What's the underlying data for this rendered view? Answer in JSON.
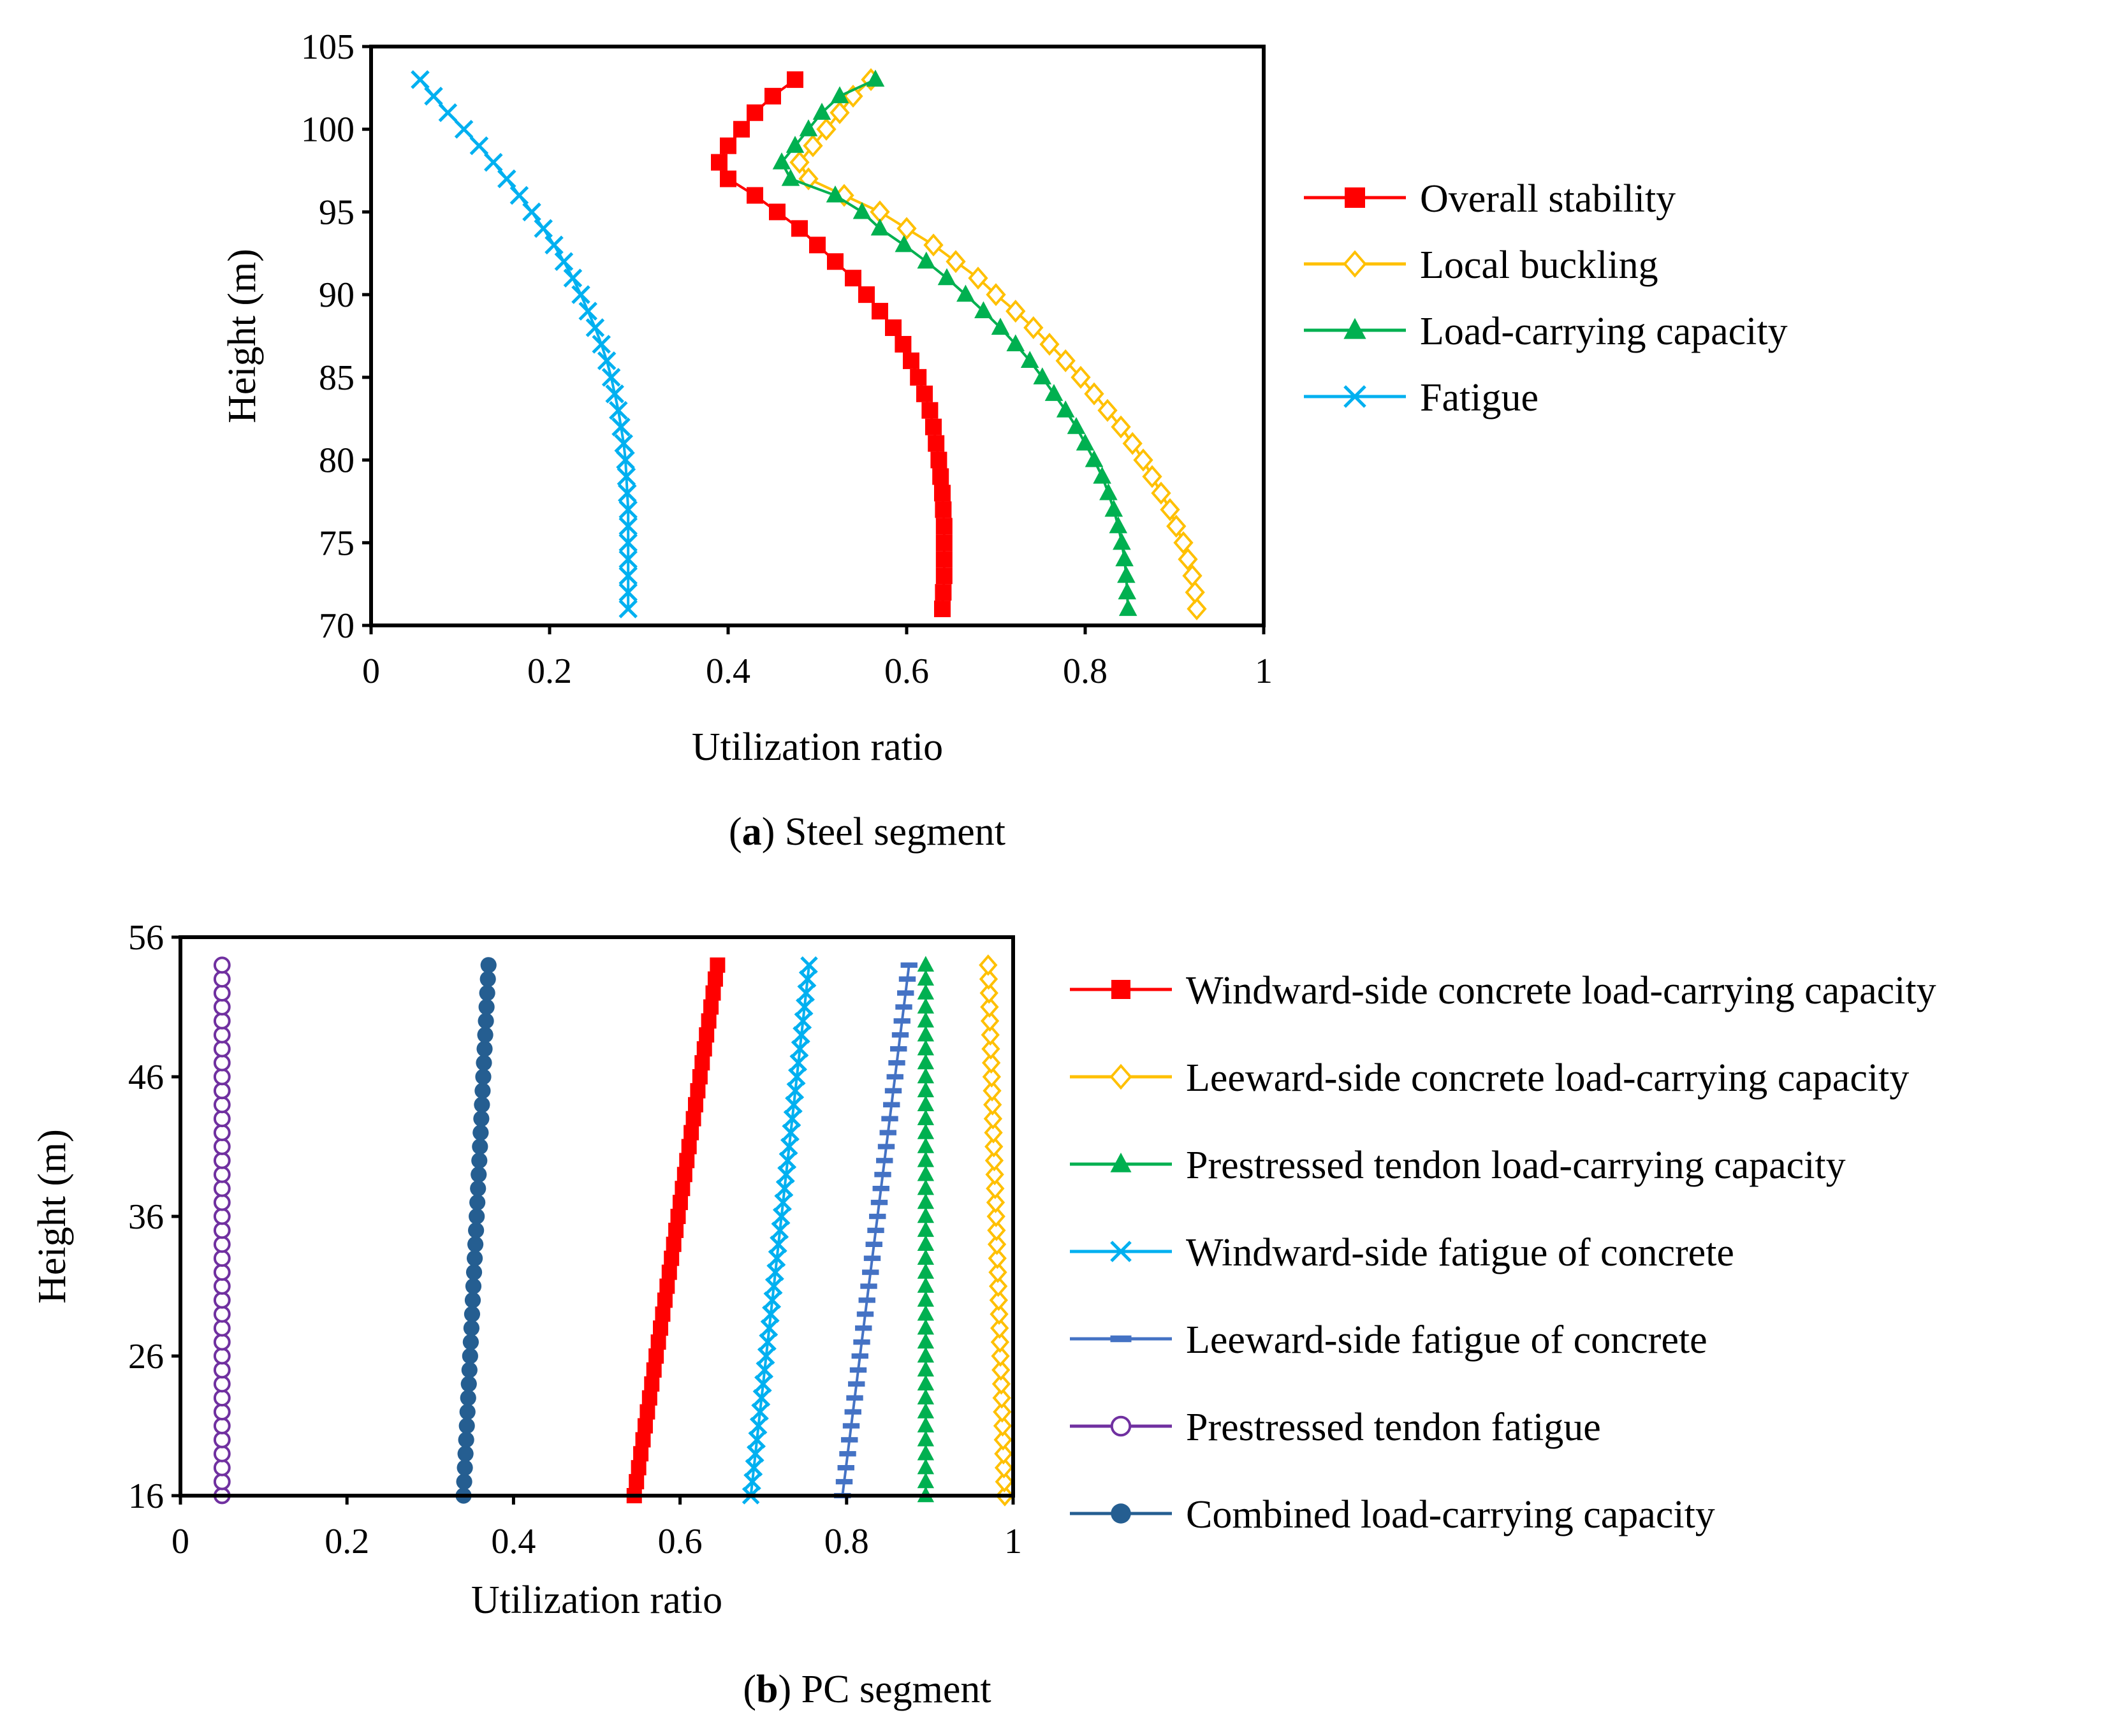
{
  "colors": {
    "red": "#FF0000",
    "orange": "#FFC000",
    "green": "#00B050",
    "lightblue": "#00B0F0",
    "blue": "#4472C4",
    "purple": "#7030A0",
    "darkblue": "#255E91"
  },
  "chart_data": [
    {
      "type": "line",
      "title": "",
      "caption": {
        "bold": "a",
        "text": ") Steel segment"
      },
      "xlabel": "Utilization ratio",
      "ylabel": "Height (m)",
      "xlim": [
        0,
        1
      ],
      "ylim": [
        70,
        105
      ],
      "xticks": [
        "0",
        "0.2",
        "0.4",
        "0.6",
        "0.8",
        "1"
      ],
      "yticks": [
        "70",
        "75",
        "80",
        "85",
        "90",
        "95",
        "100",
        "105"
      ],
      "legend_position": "right",
      "series": [
        {
          "name": "Overall stability",
          "color": "#FF0000",
          "marker": "square",
          "points": [
            [
              0.64,
              71
            ],
            [
              0.641,
              72
            ],
            [
              0.642,
              73
            ],
            [
              0.642,
              74
            ],
            [
              0.642,
              75
            ],
            [
              0.642,
              76
            ],
            [
              0.641,
              77
            ],
            [
              0.64,
              78
            ],
            [
              0.638,
              79
            ],
            [
              0.636,
              80
            ],
            [
              0.633,
              81
            ],
            [
              0.63,
              82
            ],
            [
              0.626,
              83
            ],
            [
              0.62,
              84
            ],
            [
              0.613,
              85
            ],
            [
              0.605,
              86
            ],
            [
              0.596,
              87
            ],
            [
              0.585,
              88
            ],
            [
              0.57,
              89
            ],
            [
              0.555,
              90
            ],
            [
              0.54,
              91
            ],
            [
              0.52,
              92
            ],
            [
              0.5,
              93
            ],
            [
              0.48,
              94
            ],
            [
              0.455,
              95
            ],
            [
              0.43,
              96
            ],
            [
              0.4,
              97
            ],
            [
              0.39,
              98
            ],
            [
              0.4,
              99
            ],
            [
              0.415,
              100
            ],
            [
              0.43,
              101
            ],
            [
              0.45,
              102
            ],
            [
              0.475,
              103
            ]
          ]
        },
        {
          "name": "Local buckling",
          "color": "#FFC000",
          "marker": "diamond",
          "points": [
            [
              0.925,
              71
            ],
            [
              0.923,
              72
            ],
            [
              0.92,
              73
            ],
            [
              0.915,
              74
            ],
            [
              0.91,
              75
            ],
            [
              0.902,
              76
            ],
            [
              0.895,
              77
            ],
            [
              0.885,
              78
            ],
            [
              0.875,
              79
            ],
            [
              0.865,
              80
            ],
            [
              0.853,
              81
            ],
            [
              0.84,
              82
            ],
            [
              0.825,
              83
            ],
            [
              0.81,
              84
            ],
            [
              0.795,
              85
            ],
            [
              0.778,
              86
            ],
            [
              0.76,
              87
            ],
            [
              0.742,
              88
            ],
            [
              0.722,
              89
            ],
            [
              0.7,
              90
            ],
            [
              0.68,
              91
            ],
            [
              0.655,
              92
            ],
            [
              0.63,
              93
            ],
            [
              0.6,
              94
            ],
            [
              0.57,
              95
            ],
            [
              0.53,
              96
            ],
            [
              0.49,
              97
            ],
            [
              0.48,
              98
            ],
            [
              0.495,
              99
            ],
            [
              0.51,
              100
            ],
            [
              0.525,
              101
            ],
            [
              0.54,
              102
            ],
            [
              0.56,
              103
            ]
          ]
        },
        {
          "name": "Load-carrying capacity",
          "color": "#00B050",
          "marker": "triangle",
          "points": [
            [
              0.848,
              71
            ],
            [
              0.847,
              72
            ],
            [
              0.846,
              73
            ],
            [
              0.844,
              74
            ],
            [
              0.841,
              75
            ],
            [
              0.837,
              76
            ],
            [
              0.832,
              77
            ],
            [
              0.826,
              78
            ],
            [
              0.819,
              79
            ],
            [
              0.81,
              80
            ],
            [
              0.8,
              81
            ],
            [
              0.79,
              82
            ],
            [
              0.778,
              83
            ],
            [
              0.765,
              84
            ],
            [
              0.752,
              85
            ],
            [
              0.738,
              86
            ],
            [
              0.722,
              87
            ],
            [
              0.705,
              88
            ],
            [
              0.686,
              89
            ],
            [
              0.666,
              90
            ],
            [
              0.645,
              91
            ],
            [
              0.622,
              92
            ],
            [
              0.597,
              93
            ],
            [
              0.57,
              94
            ],
            [
              0.55,
              95
            ],
            [
              0.52,
              96
            ],
            [
              0.47,
              97
            ],
            [
              0.46,
              98
            ],
            [
              0.475,
              99
            ],
            [
              0.49,
              100
            ],
            [
              0.505,
              101
            ],
            [
              0.525,
              102
            ],
            [
              0.565,
              103
            ]
          ]
        },
        {
          "name": "Fatigue",
          "color": "#00B0F0",
          "marker": "x",
          "points": [
            [
              0.288,
              71
            ],
            [
              0.288,
              72
            ],
            [
              0.288,
              73
            ],
            [
              0.288,
              74
            ],
            [
              0.288,
              75
            ],
            [
              0.288,
              76
            ],
            [
              0.288,
              77
            ],
            [
              0.287,
              78
            ],
            [
              0.286,
              79
            ],
            [
              0.285,
              80
            ],
            [
              0.283,
              81
            ],
            [
              0.28,
              82
            ],
            [
              0.277,
              83
            ],
            [
              0.273,
              84
            ],
            [
              0.269,
              85
            ],
            [
              0.264,
              86
            ],
            [
              0.258,
              87
            ],
            [
              0.251,
              88
            ],
            [
              0.243,
              89
            ],
            [
              0.235,
              90
            ],
            [
              0.226,
              91
            ],
            [
              0.216,
              92
            ],
            [
              0.205,
              93
            ],
            [
              0.193,
              94
            ],
            [
              0.18,
              95
            ],
            [
              0.166,
              96
            ],
            [
              0.152,
              97
            ],
            [
              0.137,
              98
            ],
            [
              0.121,
              99
            ],
            [
              0.104,
              100
            ],
            [
              0.086,
              101
            ],
            [
              0.07,
              102
            ],
            [
              0.055,
              103
            ]
          ]
        }
      ]
    },
    {
      "type": "line",
      "title": "",
      "caption": {
        "bold": "b",
        "text": ") PC segment"
      },
      "xlabel": "Utilization ratio",
      "ylabel": "Height (m)",
      "xlim": [
        0,
        1
      ],
      "ylim": [
        16,
        56
      ],
      "xticks": [
        "0",
        "0.2",
        "0.4",
        "0.6",
        "0.8",
        "1"
      ],
      "yticks": [
        "16",
        "26",
        "36",
        "46",
        "56"
      ],
      "legend_position": "right",
      "series": [
        {
          "name": "Windward-side concrete load-carrying capacity",
          "color": "#FF0000",
          "marker": "square",
          "bottom": [
            0.545,
            16
          ],
          "top": [
            0.645,
            54
          ]
        },
        {
          "name": "Leeward-side concrete load-carrying capacity",
          "color": "#FFC000",
          "marker": "diamond",
          "bottom": [
            0.99,
            16
          ],
          "top": [
            0.97,
            54
          ]
        },
        {
          "name": "Prestressed tendon load-carrying capacity",
          "color": "#00B050",
          "marker": "triangle",
          "bottom": [
            0.895,
            16
          ],
          "top": [
            0.895,
            54
          ]
        },
        {
          "name": "Windward-side fatigue of concrete",
          "color": "#00B0F0",
          "marker": "x",
          "bottom": [
            0.685,
            16
          ],
          "top": [
            0.755,
            54
          ]
        },
        {
          "name": "Leeward-side fatigue of concrete",
          "color": "#4472C4",
          "marker": "dash",
          "bottom": [
            0.795,
            16
          ],
          "top": [
            0.875,
            54
          ]
        },
        {
          "name": "Prestressed tendon fatigue",
          "color": "#7030A0",
          "marker": "circle-open",
          "bottom": [
            0.05,
            16
          ],
          "top": [
            0.05,
            54
          ]
        },
        {
          "name": "Combined load-carrying capacity",
          "color": "#255E91",
          "marker": "circle",
          "bottom": [
            0.34,
            16
          ],
          "top": [
            0.37,
            54
          ]
        }
      ]
    }
  ]
}
